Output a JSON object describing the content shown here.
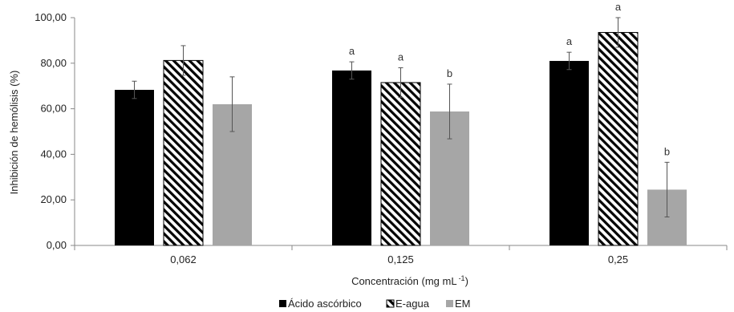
{
  "chart_data": {
    "type": "bar",
    "title": "",
    "xlabel": "Concentración (mg mL",
    "xlabel_sup": "-1",
    "xlabel_suffix": ")",
    "ylabel": "Inhibición de hemólisis (%)",
    "ylim": [
      0,
      100
    ],
    "yticks": [
      "0,00",
      "20,00",
      "40,00",
      "60,00",
      "80,00",
      "100,00"
    ],
    "ytick_values": [
      0,
      20,
      40,
      60,
      80,
      100
    ],
    "categories": [
      "0,062",
      "0,125",
      "0,25"
    ],
    "legend_position": "bottom",
    "grid": false,
    "series": [
      {
        "name": "Ácido ascórbico",
        "fill": "solid",
        "color": "#000000",
        "values": [
          68.3,
          76.8,
          81.0
        ],
        "errors": [
          3.8,
          3.8,
          3.8
        ],
        "labels": [
          "",
          "a",
          "a"
        ]
      },
      {
        "name": "E-agua",
        "fill": "hatch",
        "color": "#000000",
        "values": [
          81.2,
          71.5,
          93.5
        ],
        "errors": [
          6.5,
          6.5,
          6.5
        ],
        "labels": [
          "",
          "a",
          "a"
        ]
      },
      {
        "name": "EM",
        "fill": "solid",
        "color": "#a6a6a6",
        "values": [
          62.0,
          58.8,
          24.5
        ],
        "errors": [
          12.0,
          12.0,
          12.0
        ],
        "labels": [
          "",
          "b",
          "b"
        ]
      }
    ]
  }
}
